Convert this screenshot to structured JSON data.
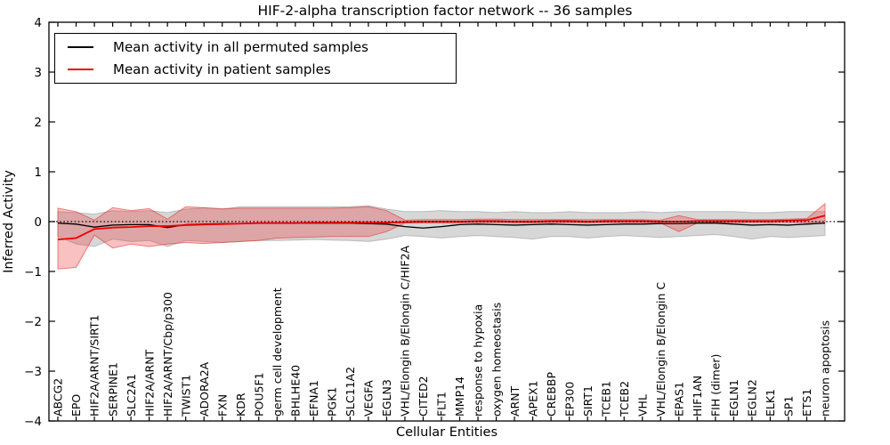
{
  "chart_data": {
    "type": "line",
    "title": "HIF-2-alpha transcription factor network -- 36 samples",
    "xlabel": "Cellular Entities",
    "ylabel": "Inferred Activity",
    "ylim": [
      -4,
      4
    ],
    "grid": false,
    "legend_position": "upper left",
    "yticks": [
      {
        "value": 4,
        "label": "4"
      },
      {
        "value": 3,
        "label": "3"
      },
      {
        "value": 2,
        "label": "2"
      },
      {
        "value": 1,
        "label": "1"
      },
      {
        "value": 0,
        "label": "0"
      },
      {
        "value": -1,
        "label": "−1"
      },
      {
        "value": -2,
        "label": "−2"
      },
      {
        "value": -3,
        "label": "−3"
      },
      {
        "value": -4,
        "label": "−4"
      }
    ],
    "zero_line": {
      "value": 0,
      "style": "dotted",
      "color": "#000000"
    },
    "categories": [
      "ABCG2",
      "EPO",
      "HIF2A/ARNT/SIRT1",
      "SERPINE1",
      "SLC2A1",
      "HIF2A/ARNT",
      "HIF2A/ARNT/Cbp/p300",
      "TWIST1",
      "ADORA2A",
      "FXN",
      "KDR",
      "POU5F1",
      "germ cell development",
      "BHLHE40",
      "EFNA1",
      "PGK1",
      "SLC11A2",
      "VEGFA",
      "EGLN3",
      "VHL/Elongin B/Elongin C/HIF2A",
      "CITED2",
      "FLT1",
      "MMP14",
      "response to hypoxia",
      "oxygen homeostasis",
      "ARNT",
      "APEX1",
      "CREBBP",
      "EP300",
      "SIRT1",
      "TCEB1",
      "TCEB2",
      "VHL",
      "VHL/Elongin B/Elongin C",
      "EPAS1",
      "HIF1AN",
      "FIH (dimer)",
      "EGLN1",
      "EGLN2",
      "ELK1",
      "SP1",
      "ETS1",
      "neuron apoptosis"
    ],
    "series": [
      {
        "name": "Mean activity in all permuted samples",
        "color": "#000000",
        "line_width": 1.3,
        "band_fill": "rgba(150,150,150,0.38)",
        "band_edge": "rgba(150,150,150,0.55)",
        "values": [
          -0.03,
          -0.05,
          -0.11,
          -0.07,
          -0.06,
          -0.06,
          -0.12,
          -0.06,
          -0.05,
          -0.04,
          -0.04,
          -0.03,
          -0.03,
          -0.03,
          -0.03,
          -0.03,
          -0.03,
          -0.04,
          -0.05,
          -0.1,
          -0.13,
          -0.1,
          -0.06,
          -0.05,
          -0.06,
          -0.07,
          -0.06,
          -0.05,
          -0.06,
          -0.07,
          -0.06,
          -0.05,
          -0.05,
          -0.04,
          -0.04,
          -0.03,
          -0.03,
          -0.05,
          -0.07,
          -0.06,
          -0.07,
          -0.05,
          -0.03
        ],
        "band_low": [
          -0.3,
          -0.45,
          -0.5,
          -0.35,
          -0.4,
          -0.38,
          -0.5,
          -0.38,
          -0.4,
          -0.42,
          -0.4,
          -0.38,
          -0.38,
          -0.37,
          -0.36,
          -0.37,
          -0.38,
          -0.4,
          -0.35,
          -0.28,
          -0.3,
          -0.33,
          -0.3,
          -0.28,
          -0.3,
          -0.32,
          -0.35,
          -0.3,
          -0.3,
          -0.33,
          -0.3,
          -0.28,
          -0.3,
          -0.32,
          -0.3,
          -0.28,
          -0.26,
          -0.3,
          -0.35,
          -0.3,
          -0.32,
          -0.3,
          -0.28
        ],
        "band_high": [
          0.2,
          0.18,
          0.15,
          0.22,
          0.2,
          0.22,
          0.18,
          0.25,
          0.28,
          0.25,
          0.3,
          0.3,
          0.3,
          0.3,
          0.3,
          0.3,
          0.3,
          0.32,
          0.25,
          0.2,
          0.2,
          0.22,
          0.2,
          0.2,
          0.18,
          0.2,
          0.18,
          0.18,
          0.2,
          0.18,
          0.18,
          0.18,
          0.2,
          0.18,
          0.2,
          0.2,
          0.2,
          0.2,
          0.18,
          0.18,
          0.2,
          0.2,
          0.2
        ]
      },
      {
        "name": "Mean activity in patient samples",
        "color": "#ee0000",
        "line_width": 1.8,
        "band_fill": "rgba(235,50,50,0.30)",
        "band_edge": "rgba(230,40,40,0.55)",
        "values": [
          -0.36,
          -0.33,
          -0.15,
          -0.12,
          -0.11,
          -0.09,
          -0.09,
          -0.07,
          -0.06,
          -0.05,
          -0.04,
          -0.03,
          -0.03,
          -0.03,
          -0.02,
          -0.02,
          -0.02,
          -0.02,
          -0.02,
          -0.01,
          0.0,
          0.0,
          0.0,
          0.01,
          0.01,
          0.0,
          0.0,
          0.01,
          0.01,
          0.0,
          0.01,
          0.01,
          0.01,
          0.0,
          0.0,
          0.01,
          0.01,
          0.01,
          0.01,
          0.01,
          0.02,
          0.03,
          0.12
        ],
        "band_low": [
          -0.95,
          -0.92,
          -0.27,
          -0.53,
          -0.45,
          -0.5,
          -0.45,
          -0.42,
          -0.44,
          -0.42,
          -0.4,
          -0.38,
          -0.33,
          -0.32,
          -0.31,
          -0.3,
          -0.3,
          -0.3,
          -0.2,
          -0.03,
          -0.03,
          -0.03,
          -0.03,
          -0.02,
          -0.02,
          -0.03,
          -0.03,
          -0.02,
          -0.02,
          -0.03,
          -0.02,
          -0.02,
          -0.02,
          -0.03,
          -0.2,
          -0.03,
          -0.02,
          -0.02,
          -0.02,
          -0.02,
          -0.02,
          -0.02,
          0.0
        ],
        "band_high": [
          0.27,
          0.2,
          0.03,
          0.28,
          0.22,
          0.26,
          0.05,
          0.3,
          0.28,
          0.26,
          0.27,
          0.27,
          0.27,
          0.27,
          0.27,
          0.27,
          0.28,
          0.3,
          0.22,
          0.03,
          0.04,
          0.04,
          0.04,
          0.05,
          0.05,
          0.04,
          0.04,
          0.04,
          0.04,
          0.04,
          0.04,
          0.04,
          0.04,
          0.03,
          0.12,
          0.04,
          0.04,
          0.04,
          0.04,
          0.04,
          0.05,
          0.06,
          0.36
        ]
      }
    ]
  }
}
